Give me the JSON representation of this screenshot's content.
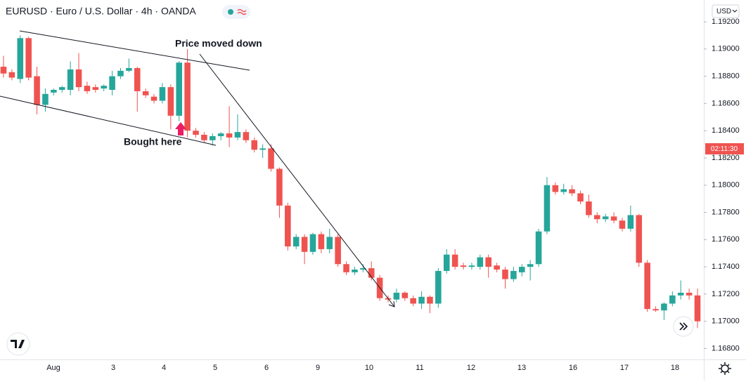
{
  "chart_data": {
    "type": "candlestick",
    "title": "EURUSD · Euro / U.S. Dollar · 4h · OANDA",
    "currency": "USD",
    "countdown": "02:11:30",
    "annotations": [
      "Price moved down",
      "Bought here"
    ],
    "up_color": "#26a69a",
    "down_color": "#ef5350",
    "x_tick_labels": [
      "Aug",
      "3",
      "4",
      "5",
      "6",
      "9",
      "10",
      "11",
      "12",
      "13",
      "16",
      "17",
      "18"
    ],
    "ylim": [
      1.1672,
      1.1936
    ],
    "yticks": [
      {
        "value": 1.192,
        "label": "1.19200"
      },
      {
        "value": 1.19,
        "label": "1.19000"
      },
      {
        "value": 1.188,
        "label": "1.18800"
      },
      {
        "value": 1.186,
        "label": "1.18600"
      },
      {
        "value": 1.184,
        "label": "1.18400"
      },
      {
        "value": 1.182,
        "label": "1.18200"
      },
      {
        "value": 1.18,
        "label": "1.18000"
      },
      {
        "value": 1.178,
        "label": "1.17800"
      },
      {
        "value": 1.176,
        "label": "1.17600"
      },
      {
        "value": 1.174,
        "label": "1.17400"
      },
      {
        "value": 1.172,
        "label": "1.17200"
      },
      {
        "value": 1.17,
        "label": "1.17000"
      },
      {
        "value": 1.168,
        "label": "1.16800"
      }
    ],
    "candles": [
      [
        1.1887,
        1.1895,
        1.1879,
        1.1882
      ],
      [
        1.1883,
        1.1885,
        1.1877,
        1.1879
      ],
      [
        1.1878,
        1.191,
        1.1875,
        1.1908
      ],
      [
        1.1908,
        1.1909,
        1.1877,
        1.1879
      ],
      [
        1.188,
        1.1887,
        1.1852,
        1.1859
      ],
      [
        1.1859,
        1.1871,
        1.1854,
        1.1867
      ],
      [
        1.1868,
        1.1871,
        1.1866,
        1.187
      ],
      [
        1.187,
        1.1873,
        1.1868,
        1.1872
      ],
      [
        1.187,
        1.1891,
        1.1866,
        1.1885
      ],
      [
        1.1885,
        1.1897,
        1.1869,
        1.1872
      ],
      [
        1.1873,
        1.1876,
        1.1867,
        1.1869
      ],
      [
        1.1872,
        1.1874,
        1.1868,
        1.187
      ],
      [
        1.1871,
        1.1874,
        1.1869,
        1.1873
      ],
      [
        1.187,
        1.1884,
        1.1866,
        1.188
      ],
      [
        1.188,
        1.1886,
        1.1878,
        1.1884
      ],
      [
        1.1884,
        1.1893,
        1.1883,
        1.1886
      ],
      [
        1.1886,
        1.1887,
        1.1854,
        1.1869
      ],
      [
        1.1869,
        1.1871,
        1.1864,
        1.1866
      ],
      [
        1.1865,
        1.1867,
        1.186,
        1.1862
      ],
      [
        1.1862,
        1.1875,
        1.186,
        1.1872
      ],
      [
        1.1872,
        1.1874,
        1.1841,
        1.1851
      ],
      [
        1.1851,
        1.1891,
        1.1847,
        1.189
      ],
      [
        1.189,
        1.19,
        1.1835,
        1.184
      ],
      [
        1.184,
        1.1842,
        1.1835,
        1.1837
      ],
      [
        1.1837,
        1.1839,
        1.1831,
        1.1833
      ],
      [
        1.1833,
        1.1838,
        1.1829,
        1.1836
      ],
      [
        1.1836,
        1.1839,
        1.1833,
        1.1838
      ],
      [
        1.1838,
        1.1858,
        1.1828,
        1.1835
      ],
      [
        1.1835,
        1.1852,
        1.1833,
        1.1839
      ],
      [
        1.1839,
        1.1841,
        1.1831,
        1.1833
      ],
      [
        1.1833,
        1.1835,
        1.1824,
        1.1826
      ],
      [
        1.1826,
        1.183,
        1.182,
        1.1827
      ],
      [
        1.1827,
        1.183,
        1.181,
        1.1812
      ],
      [
        1.1812,
        1.1813,
        1.1776,
        1.1785
      ],
      [
        1.1785,
        1.1787,
        1.1752,
        1.1755
      ],
      [
        1.1755,
        1.1764,
        1.1753,
        1.1762
      ],
      [
        1.1762,
        1.1764,
        1.1742,
        1.1751
      ],
      [
        1.1751,
        1.1765,
        1.1749,
        1.1764
      ],
      [
        1.1764,
        1.1766,
        1.175,
        1.1753
      ],
      [
        1.1753,
        1.1768,
        1.175,
        1.1762
      ],
      [
        1.1762,
        1.1764,
        1.174,
        1.1742
      ],
      [
        1.1742,
        1.1744,
        1.1734,
        1.1736
      ],
      [
        1.1736,
        1.174,
        1.1734,
        1.1738
      ],
      [
        1.1738,
        1.1742,
        1.1736,
        1.1739
      ],
      [
        1.1739,
        1.1744,
        1.173,
        1.1732
      ],
      [
        1.1732,
        1.1734,
        1.1715,
        1.1717
      ],
      [
        1.1717,
        1.1719,
        1.1714,
        1.1716
      ],
      [
        1.1716,
        1.1724,
        1.1714,
        1.1721
      ],
      [
        1.1721,
        1.1722,
        1.1715,
        1.1717
      ],
      [
        1.1717,
        1.1719,
        1.1711,
        1.1713
      ],
      [
        1.1713,
        1.1722,
        1.1709,
        1.1718
      ],
      [
        1.1718,
        1.1719,
        1.1706,
        1.1713
      ],
      [
        1.1713,
        1.1739,
        1.171,
        1.1737
      ],
      [
        1.1737,
        1.1753,
        1.1735,
        1.1749
      ],
      [
        1.1749,
        1.1753,
        1.1738,
        1.174
      ],
      [
        1.1741,
        1.1743,
        1.1738,
        1.174
      ],
      [
        1.174,
        1.1743,
        1.1738,
        1.1741
      ],
      [
        1.174,
        1.1749,
        1.1738,
        1.1747
      ],
      [
        1.1747,
        1.1749,
        1.1732,
        1.174
      ],
      [
        1.1741,
        1.1743,
        1.1736,
        1.1738
      ],
      [
        1.1738,
        1.174,
        1.1724,
        1.1731
      ],
      [
        1.1731,
        1.174,
        1.1729,
        1.1737
      ],
      [
        1.1736,
        1.1742,
        1.1733,
        1.174
      ],
      [
        1.174,
        1.1745,
        1.173,
        1.1742
      ],
      [
        1.1742,
        1.1768,
        1.174,
        1.1766
      ],
      [
        1.1766,
        1.1806,
        1.1764,
        1.18
      ],
      [
        1.18,
        1.1802,
        1.1793,
        1.1795
      ],
      [
        1.1795,
        1.1801,
        1.1793,
        1.1797
      ],
      [
        1.1797,
        1.18,
        1.1792,
        1.1794
      ],
      [
        1.1794,
        1.1796,
        1.1786,
        1.1788
      ],
      [
        1.1788,
        1.1793,
        1.1776,
        1.1778
      ],
      [
        1.1778,
        1.178,
        1.1772,
        1.1775
      ],
      [
        1.1775,
        1.1779,
        1.1773,
        1.1777
      ],
      [
        1.1777,
        1.178,
        1.1772,
        1.1774
      ],
      [
        1.1774,
        1.1776,
        1.1766,
        1.1768
      ],
      [
        1.1768,
        1.1785,
        1.1766,
        1.1778
      ],
      [
        1.1778,
        1.1779,
        1.174,
        1.1743
      ],
      [
        1.1743,
        1.1745,
        1.1707,
        1.1709
      ],
      [
        1.1709,
        1.1711,
        1.1707,
        1.1708
      ],
      [
        1.1708,
        1.1714,
        1.1701,
        1.1713
      ],
      [
        1.1713,
        1.1722,
        1.1711,
        1.1719
      ],
      [
        1.1719,
        1.173,
        1.1716,
        1.1721
      ],
      [
        1.1721,
        1.1724,
        1.1716,
        1.1719
      ],
      [
        1.1719,
        1.1724,
        1.1695,
        1.17
      ]
    ]
  }
}
